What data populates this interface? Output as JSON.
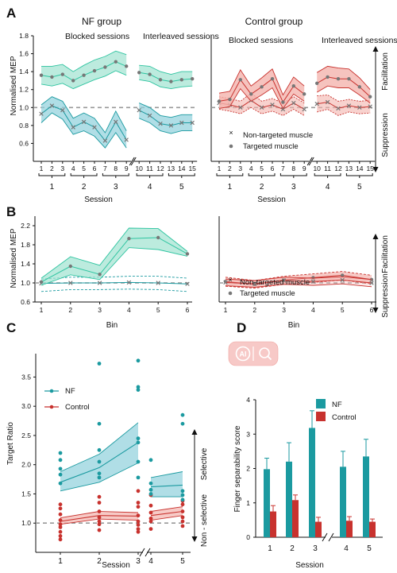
{
  "panels": {
    "a": "A",
    "b": "B",
    "c": "C",
    "d": "D"
  },
  "panel_a": {
    "nf_title": "NF group",
    "control_title": "Control group",
    "blocked_label": "Blocked sessions",
    "interleaved_label": "Interleaved sessions",
    "ylabel": "Normalised MEP",
    "xlabel": "Session",
    "facilitation": "Facilitation",
    "suppression": "Suppression",
    "legend_nontargeted": "Non-targeted muscle",
    "legend_targeted": "Targeted muscle",
    "trial_ticks": [
      "1",
      "2",
      "3",
      "4",
      "5",
      "6",
      "7",
      "8",
      "9",
      "10",
      "11",
      "12",
      "13",
      "14",
      "15"
    ],
    "session_ticks": [
      "1",
      "2",
      "3",
      "4",
      "5"
    ],
    "yticks": [
      "0.6",
      "0.8",
      "1.0",
      "1.2",
      "1.4",
      "1.6",
      "1.8"
    ]
  },
  "panel_b": {
    "ylabel": "Normalised MEP",
    "xlabel": "Bin",
    "facilitation": "Facilitation",
    "suppression": "Suppression",
    "legend_nontargeted": "Non-targeted muscle",
    "legend_targeted": "Targeted muscle",
    "xticks": [
      "1",
      "2",
      "3",
      "4",
      "5",
      "6"
    ],
    "yticks": [
      "0.6",
      "1.0",
      "1.4",
      "1.8",
      "2.2"
    ]
  },
  "panel_c": {
    "ylabel": "Target Ratio",
    "xlabel": "Session",
    "legend_nf": "NF",
    "legend_control": "Control",
    "selective": "Selective",
    "non_selective": "Non - selective",
    "xticks": [
      "1",
      "2",
      "3",
      "4",
      "5"
    ],
    "yticks": [
      "1.0",
      "1.5",
      "2.0",
      "2.5",
      "3.0",
      "3.5"
    ]
  },
  "panel_d": {
    "ylabel": "Finger separability score",
    "xlabel": "Session",
    "legend_nf": "NF",
    "legend_control": "Control",
    "logo_text": "AI",
    "xticks": [
      "1",
      "2",
      "3",
      "4",
      "5"
    ],
    "yticks": [
      "0",
      "1",
      "2",
      "3",
      "4"
    ]
  },
  "colors": {
    "nf": "#1b9aa0",
    "nf_light": "#2ec4a0",
    "nf_band": "#9fe3d0",
    "nf_band_blue": "#8fd0dc",
    "control": "#c8322e",
    "control_band": "#f4b4ae",
    "ref": "#999999",
    "sym": "#777777"
  },
  "chart_data": [
    {
      "type": "line",
      "title": "NF group",
      "xlabel": "Session",
      "ylabel": "Normalised MEP",
      "ylim": [
        0.4,
        1.8
      ],
      "x": [
        1,
        2,
        3,
        4,
        5,
        6,
        7,
        8,
        9,
        10,
        11,
        12,
        13,
        14,
        15
      ],
      "series": [
        {
          "name": "Targeted muscle",
          "values": [
            1.36,
            1.34,
            1.37,
            1.3,
            1.36,
            1.41,
            1.45,
            1.51,
            1.46,
            1.39,
            1.37,
            1.31,
            1.29,
            1.31,
            1.32
          ],
          "lower": [
            1.26,
            1.24,
            1.27,
            1.21,
            1.26,
            1.31,
            1.35,
            1.41,
            1.36,
            1.31,
            1.29,
            1.23,
            1.21,
            1.23,
            1.24
          ],
          "upper": [
            1.46,
            1.46,
            1.48,
            1.4,
            1.47,
            1.53,
            1.57,
            1.63,
            1.59,
            1.47,
            1.46,
            1.4,
            1.37,
            1.4,
            1.4
          ]
        },
        {
          "name": "Non-targeted muscle",
          "values": [
            0.93,
            1.02,
            0.97,
            0.78,
            0.84,
            0.78,
            0.63,
            0.84,
            0.64,
            0.97,
            0.91,
            0.82,
            0.8,
            0.83,
            0.83
          ],
          "lower": [
            0.83,
            0.94,
            0.87,
            0.7,
            0.74,
            0.68,
            0.55,
            0.72,
            0.55,
            0.88,
            0.83,
            0.74,
            0.71,
            0.74,
            0.74
          ],
          "upper": [
            1.03,
            1.12,
            1.07,
            0.88,
            0.94,
            0.88,
            0.72,
            0.96,
            0.74,
            1.05,
            1.0,
            0.91,
            0.89,
            0.92,
            0.92
          ]
        }
      ],
      "reference_line": 1.0
    },
    {
      "type": "line",
      "title": "Control group",
      "xlabel": "Session",
      "ylim": [
        0.4,
        1.8
      ],
      "x": [
        1,
        2,
        3,
        4,
        5,
        6,
        7,
        8,
        9,
        10,
        11,
        12,
        13,
        14,
        15
      ],
      "series": [
        {
          "name": "Targeted muscle",
          "values": [
            1.07,
            1.09,
            1.31,
            1.15,
            1.23,
            1.32,
            1.06,
            1.24,
            1.15,
            1.27,
            1.34,
            1.32,
            1.32,
            1.23,
            1.12
          ],
          "lower": [
            0.99,
            1.01,
            1.21,
            1.07,
            1.14,
            1.22,
            0.99,
            1.15,
            1.07,
            1.17,
            1.24,
            1.22,
            1.22,
            1.14,
            1.05
          ],
          "upper": [
            1.16,
            1.18,
            1.42,
            1.24,
            1.33,
            1.43,
            1.14,
            1.34,
            1.24,
            1.39,
            1.46,
            1.44,
            1.43,
            1.33,
            1.2
          ]
        },
        {
          "name": "Non-targeted muscle",
          "values": [
            1.05,
            1.03,
            1.0,
            1.08,
            1.0,
            1.03,
            0.98,
            1.05,
            0.98,
            1.04,
            1.06,
            0.99,
            1.02,
            1.0,
            1.01
          ],
          "lower": [
            0.98,
            0.96,
            0.93,
            1.0,
            0.93,
            0.96,
            0.91,
            0.98,
            0.91,
            0.95,
            0.98,
            0.91,
            0.95,
            0.93,
            0.94
          ],
          "upper": [
            1.12,
            1.1,
            1.07,
            1.16,
            1.07,
            1.1,
            1.05,
            1.12,
            1.05,
            1.13,
            1.14,
            1.07,
            1.09,
            1.07,
            1.08
          ]
        }
      ],
      "reference_line": 1.0
    },
    {
      "type": "line",
      "xlabel": "Bin",
      "ylabel": "Normalised MEP",
      "ylim": [
        0.6,
        2.4
      ],
      "x": [
        1,
        2,
        3,
        4,
        5,
        6
      ],
      "series": [
        {
          "name": "Targeted muscle",
          "values": [
            1.02,
            1.35,
            1.18,
            1.93,
            1.95,
            1.61
          ],
          "lower": [
            0.95,
            1.17,
            1.07,
            1.74,
            1.7,
            1.56
          ],
          "upper": [
            1.1,
            1.55,
            1.37,
            2.15,
            2.14,
            1.66
          ]
        },
        {
          "name": "Non-targeted muscle",
          "values": [
            0.99,
            1.0,
            1.0,
            1.01,
            1.0,
            0.98
          ],
          "lower": [
            0.82,
            0.86,
            0.86,
            0.87,
            0.86,
            0.82
          ],
          "upper": [
            1.08,
            1.12,
            1.12,
            1.14,
            1.14,
            1.1
          ]
        }
      ],
      "reference_line": 1.0
    },
    {
      "type": "line",
      "xlabel": "Bin",
      "ylim": [
        0.6,
        2.4
      ],
      "x": [
        1,
        2,
        3,
        4,
        5,
        6
      ],
      "series": [
        {
          "name": "Targeted muscle",
          "values": [
            1.03,
            0.97,
            1.06,
            1.11,
            1.16,
            1.07
          ],
          "lower": [
            0.93,
            0.89,
            0.97,
            1.01,
            1.06,
            0.98
          ],
          "upper": [
            1.12,
            1.05,
            1.14,
            1.19,
            1.24,
            1.16
          ]
        },
        {
          "name": "Non-targeted muscle",
          "values": [
            1.01,
            0.98,
            1.05,
            1.03,
            1.06,
            1.0
          ],
          "lower": [
            0.94,
            0.91,
            0.97,
            0.95,
            0.98,
            0.92
          ],
          "upper": [
            1.08,
            1.05,
            1.12,
            1.1,
            1.13,
            1.07
          ]
        }
      ],
      "reference_line": 1.0
    },
    {
      "type": "scatter",
      "xlabel": "Session",
      "ylabel": "Target Ratio",
      "ylim": [
        0.5,
        3.9
      ],
      "x": [
        1,
        2,
        3,
        4,
        5
      ],
      "series": [
        {
          "name": "NF",
          "mean": [
            1.7,
            1.95,
            2.38,
            1.62,
            1.65
          ],
          "lower": [
            1.55,
            1.7,
            2.03,
            1.45,
            1.45
          ],
          "upper": [
            1.88,
            2.18,
            2.72,
            1.78,
            1.88
          ],
          "points": [
            [
              1,
              2.2
            ],
            [
              1,
              2.08
            ],
            [
              1,
              1.93
            ],
            [
              1,
              1.83
            ],
            [
              1,
              1.68
            ],
            [
              2,
              3.73
            ],
            [
              2,
              2.7
            ],
            [
              2,
              2.25
            ],
            [
              2,
              2.05
            ],
            [
              2,
              1.85
            ],
            [
              2,
              1.78
            ],
            [
              3,
              3.78
            ],
            [
              3,
              3.33
            ],
            [
              3,
              3.28
            ],
            [
              3,
              2.45
            ],
            [
              3,
              2.38
            ],
            [
              3,
              2.05
            ],
            [
              3,
              1.78
            ],
            [
              4,
              2.08
            ],
            [
              4,
              1.68
            ],
            [
              4,
              1.57
            ],
            [
              4,
              1.5
            ],
            [
              5,
              2.85
            ],
            [
              5,
              2.7
            ],
            [
              5,
              1.55
            ],
            [
              5,
              1.48
            ],
            [
              5,
              1.4
            ]
          ]
        },
        {
          "name": "Control",
          "mean": [
            1.03,
            1.13,
            1.12,
            1.13,
            1.2
          ],
          "lower": [
            0.98,
            1.07,
            1.05,
            1.05,
            1.13
          ],
          "upper": [
            1.09,
            1.2,
            1.18,
            1.2,
            1.28
          ],
          "points": [
            [
              1,
              1.32
            ],
            [
              1,
              1.25
            ],
            [
              1,
              1.15
            ],
            [
              1,
              1.05
            ],
            [
              1,
              0.98
            ],
            [
              1,
              0.93
            ],
            [
              1,
              0.85
            ],
            [
              1,
              0.78
            ],
            [
              1,
              0.72
            ],
            [
              2,
              1.45
            ],
            [
              2,
              1.35
            ],
            [
              2,
              1.2
            ],
            [
              2,
              1.1
            ],
            [
              2,
              1.03
            ],
            [
              2,
              0.98
            ],
            [
              2,
              0.88
            ],
            [
              3,
              1.55
            ],
            [
              3,
              1.35
            ],
            [
              3,
              1.28
            ],
            [
              3,
              1.13
            ],
            [
              3,
              1.03
            ],
            [
              3,
              0.97
            ],
            [
              3,
              0.9
            ],
            [
              3,
              0.85
            ],
            [
              4,
              1.48
            ],
            [
              4,
              1.3
            ],
            [
              4,
              1.18
            ],
            [
              4,
              1.08
            ],
            [
              4,
              1.03
            ],
            [
              4,
              0.9
            ],
            [
              5,
              1.38
            ],
            [
              5,
              1.32
            ],
            [
              5,
              1.2
            ],
            [
              5,
              1.1
            ],
            [
              5,
              1.03
            ],
            [
              5,
              0.95
            ]
          ]
        }
      ],
      "reference_line": 1.0
    },
    {
      "type": "bar",
      "xlabel": "Session",
      "ylabel": "Finger separability score",
      "ylim": [
        0,
        4
      ],
      "categories": [
        "1",
        "2",
        "3",
        "4",
        "5"
      ],
      "series": [
        {
          "name": "NF",
          "values": [
            1.98,
            2.2,
            3.18,
            2.05,
            2.35
          ],
          "error": [
            0.32,
            0.55,
            0.5,
            0.45,
            0.5
          ]
        },
        {
          "name": "Control",
          "values": [
            0.75,
            1.08,
            0.45,
            0.48,
            0.45
          ],
          "error": [
            0.17,
            0.15,
            0.13,
            0.12,
            0.08
          ]
        }
      ]
    }
  ]
}
